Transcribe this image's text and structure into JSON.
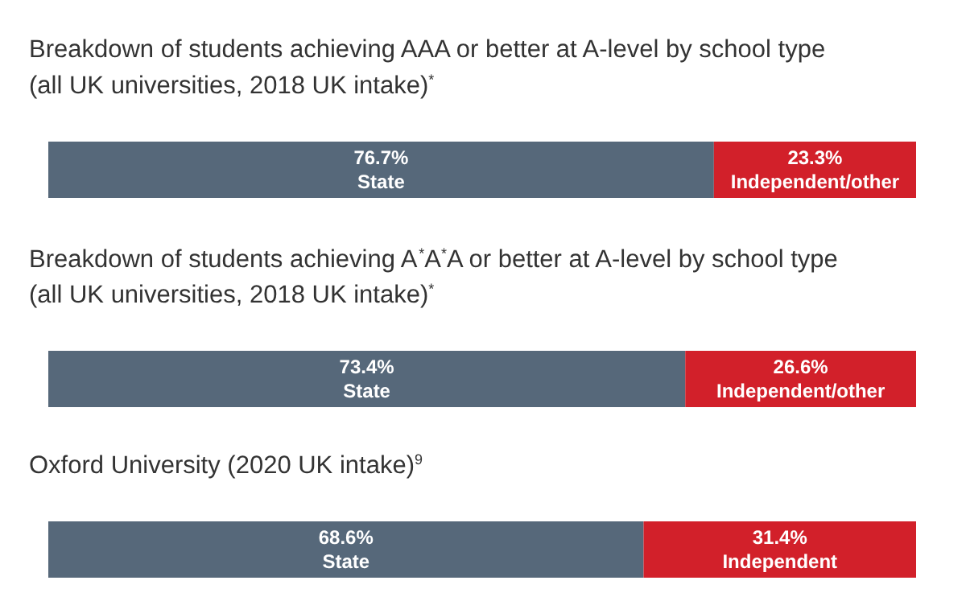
{
  "chart_data": [
    {
      "type": "bar",
      "orientation": "horizontal",
      "stacked": true,
      "title": "Breakdown of students achieving AAA or better at A-level by school type",
      "subtitle": "(all UK universities, 2018 UK intake)$^{*}$",
      "categories": [
        null
      ],
      "xlim": [
        0,
        100
      ],
      "tick_labels": false,
      "grid": false,
      "legend": false,
      "series": [
        {
          "name": "State",
          "color": "#56687a",
          "values": [
            76.7
          ],
          "value_labels": [
            "76.7%"
          ]
        },
        {
          "name": "Independent/other",
          "color": "#d2202a",
          "values": [
            23.3
          ],
          "value_labels": [
            "23.3%"
          ]
        }
      ]
    },
    {
      "type": "bar",
      "orientation": "horizontal",
      "stacked": true,
      "title": "Breakdown of students achieving A$^{*}$A$^{*}$A or better at A-level by school type",
      "subtitle": "(all UK universities, 2018 UK intake)$^{*}$",
      "categories": [
        null
      ],
      "xlim": [
        0,
        100
      ],
      "tick_labels": false,
      "grid": false,
      "legend": false,
      "series": [
        {
          "name": "State",
          "color": "#56687a",
          "values": [
            73.4
          ],
          "value_labels": [
            "73.4%"
          ]
        },
        {
          "name": "Independent/other",
          "color": "#d2202a",
          "values": [
            26.6
          ],
          "value_labels": [
            "26.6%"
          ]
        }
      ]
    },
    {
      "type": "bar",
      "orientation": "horizontal",
      "stacked": true,
      "title": "Oxford University (2020 UK intake)$^{9}$",
      "categories": [
        null
      ],
      "xlim": [
        0,
        100
      ],
      "tick_labels": false,
      "grid": false,
      "legend": false,
      "series": [
        {
          "name": "State",
          "color": "#56687a",
          "values": [
            68.6
          ],
          "value_labels": [
            "68.6%"
          ]
        },
        {
          "name": "Independent",
          "color": "#d2202a",
          "values": [
            31.4
          ],
          "value_labels": [
            "31.4%"
          ]
        }
      ]
    }
  ]
}
